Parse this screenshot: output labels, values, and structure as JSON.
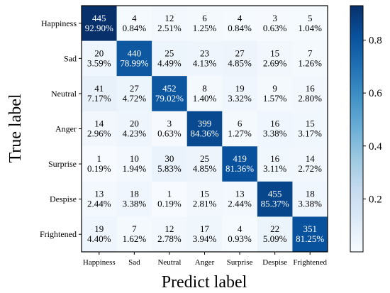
{
  "chart_data": {
    "type": "heatmap",
    "title": "",
    "xlabel": "Predict label",
    "ylabel": "True label",
    "x_categories": [
      "Happiness",
      "Sad",
      "Neutral",
      "Anger",
      "Surprise",
      "Despise",
      "Frightened"
    ],
    "y_categories": [
      "Happiness",
      "Sad",
      "Neutral",
      "Anger",
      "Surprise",
      "Despise",
      "Frightened"
    ],
    "counts": [
      [
        445,
        4,
        12,
        6,
        4,
        3,
        5
      ],
      [
        20,
        440,
        25,
        23,
        27,
        15,
        7
      ],
      [
        41,
        27,
        452,
        8,
        19,
        9,
        16
      ],
      [
        14,
        20,
        3,
        399,
        6,
        16,
        15
      ],
      [
        1,
        10,
        30,
        25,
        419,
        16,
        14
      ],
      [
        13,
        18,
        1,
        15,
        13,
        455,
        18
      ],
      [
        19,
        7,
        12,
        17,
        4,
        22,
        351
      ]
    ],
    "percentages": [
      [
        "92.90%",
        "0.84%",
        "2.51%",
        "1.25%",
        "0.84%",
        "0.63%",
        "1.04%"
      ],
      [
        "3.59%",
        "78.99%",
        "4.49%",
        "4.13%",
        "4.85%",
        "2.69%",
        "1.26%"
      ],
      [
        "7.17%",
        "4.72%",
        "79.02%",
        "1.40%",
        "3.32%",
        "1.57%",
        "2.80%"
      ],
      [
        "2.96%",
        "4.23%",
        "0.63%",
        "84.36%",
        "1.27%",
        "3.38%",
        "3.17%"
      ],
      [
        "0.19%",
        "1.94%",
        "5.83%",
        "4.85%",
        "81.36%",
        "3.11%",
        "2.72%"
      ],
      [
        "2.44%",
        "3.38%",
        "0.19%",
        "2.81%",
        "2.44%",
        "85.37%",
        "3.38%"
      ],
      [
        "4.40%",
        "1.62%",
        "2.78%",
        "3.94%",
        "0.93%",
        "5.09%",
        "81.25%"
      ]
    ],
    "colorbar": {
      "ticks": [
        "0.2",
        "0.4",
        "0.6",
        "0.8"
      ],
      "tick_values": [
        0.2,
        0.4,
        0.6,
        0.8
      ],
      "range": [
        0.0,
        0.93
      ],
      "colormap": "Blues",
      "color_low": "#f7fbff",
      "color_high": "#08306b"
    },
    "grid": false,
    "legend": "colorbar-right"
  }
}
